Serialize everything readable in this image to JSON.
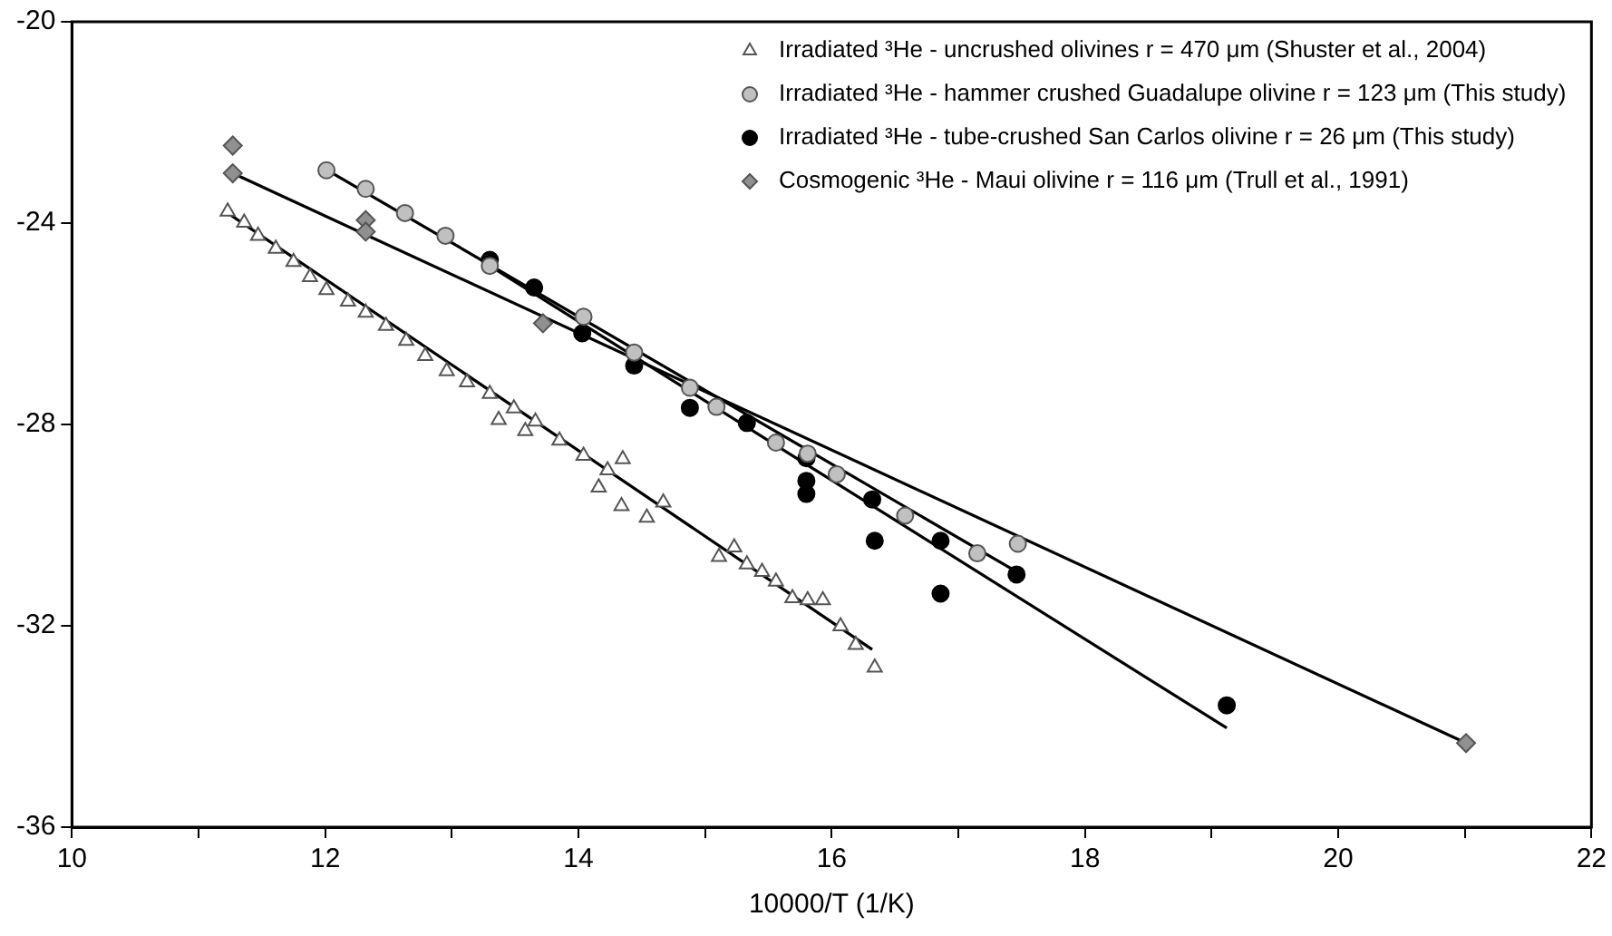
{
  "chart_data": {
    "type": "scatter",
    "xlabel": "10000/T (1/K)",
    "xlim": [
      10,
      22
    ],
    "ylim": [
      -36,
      -20
    ],
    "xticks": [
      10,
      {
        "value": 11,
        "label": null
      },
      12,
      {
        "value": 13,
        "label": null
      },
      14,
      {
        "value": 15,
        "label": null
      },
      16,
      {
        "value": 17,
        "label": null
      },
      18,
      {
        "value": 19,
        "label": null
      },
      20,
      {
        "value": 21,
        "label": null
      },
      22
    ],
    "yticks": [
      -36,
      -32,
      -28,
      -24,
      -20
    ],
    "grid": false,
    "legend": "top right",
    "series": [
      {
        "name": "Irradiated ³He - uncrushed olivines r = 470 μm (Shuster et al., 2004)",
        "color": "#ffffff",
        "marker": "triangle",
        "x": [
          11.23,
          11.36,
          11.47,
          11.61,
          11.75,
          11.88,
          12.01,
          12.18,
          12.32,
          12.48,
          12.64,
          12.79,
          12.96,
          13.12,
          13.3,
          13.49,
          13.37,
          13.58,
          13.66,
          13.85,
          14.04,
          14.23,
          14.35,
          14.16,
          14.34,
          14.67,
          14.54,
          15.11,
          15.23,
          15.33,
          15.45,
          15.56,
          15.69,
          15.81,
          15.93,
          16.07,
          16.19,
          16.34
        ],
        "values": [
          -23.77,
          -23.99,
          -24.25,
          -24.51,
          -24.77,
          -25.07,
          -25.33,
          -25.56,
          -25.78,
          -26.04,
          -26.34,
          -26.64,
          -26.94,
          -27.16,
          -27.39,
          -27.68,
          -27.91,
          -28.13,
          -27.94,
          -28.32,
          -28.62,
          -28.91,
          -28.69,
          -29.25,
          -29.62,
          -29.55,
          -29.85,
          -30.63,
          -30.44,
          -30.78,
          -30.93,
          -31.12,
          -31.45,
          -31.49,
          -31.49,
          -32.01,
          -32.38,
          -32.83
        ]
      },
      {
        "name": "Irradiated ³He - hammer crushed Guadalupe olivine r = 123 μm (This study)",
        "color": "#c0c0c0",
        "marker": "circle",
        "x": [
          12.01,
          12.32,
          12.63,
          12.95,
          13.3,
          14.04,
          14.44,
          14.88,
          15.09,
          15.56,
          15.81,
          16.04,
          16.58,
          17.15,
          17.47
        ],
        "values": [
          -22.95,
          -23.32,
          -23.8,
          -24.25,
          -24.85,
          -25.86,
          -26.57,
          -27.27,
          -27.65,
          -28.36,
          -28.58,
          -28.99,
          -29.81,
          -30.56,
          -30.37
        ]
      },
      {
        "name": "Irradiated ³He - tube-crushed San Carlos olivine r = 26 μm (This study)",
        "color": "#000000",
        "marker": "circle",
        "x": [
          13.3,
          13.65,
          14.03,
          14.44,
          14.88,
          15.33,
          15.8,
          15.8,
          15.8,
          16.32,
          16.34,
          16.86,
          16.86,
          17.46,
          19.12
        ],
        "values": [
          -24.73,
          -25.28,
          -26.19,
          -26.83,
          -27.67,
          -27.97,
          -28.67,
          -29.12,
          -29.38,
          -29.49,
          -30.31,
          -30.31,
          -31.36,
          -30.98,
          -33.58
        ]
      },
      {
        "name": "Cosmogenic ³He - Maui olivine r = 116 μm (Trull et al., 1991)",
        "color": "#909090",
        "marker": "diamond",
        "x": [
          11.27,
          11.27,
          12.32,
          12.32,
          13.72,
          21.01
        ],
        "values": [
          -22.46,
          -23.01,
          -23.94,
          -24.17,
          -25.99,
          -34.33
        ]
      },
      {
        "type": "line",
        "color": "#000000",
        "marker": "none",
        "x": [
          11.23,
          16.32
        ],
        "values": [
          -23.8,
          -32.47
        ]
      },
      {
        "type": "line",
        "color": "#000000",
        "marker": "none",
        "x": [
          12.01,
          17.47
        ],
        "values": [
          -22.94,
          -30.94
        ]
      },
      {
        "type": "line",
        "color": "#000000",
        "marker": "none",
        "x": [
          13.3,
          19.12
        ],
        "values": [
          -24.85,
          -34.03
        ]
      },
      {
        "type": "line",
        "color": "#000000",
        "marker": "none",
        "x": [
          11.27,
          21.01
        ],
        "values": [
          -23.01,
          -34.33
        ]
      }
    ]
  }
}
